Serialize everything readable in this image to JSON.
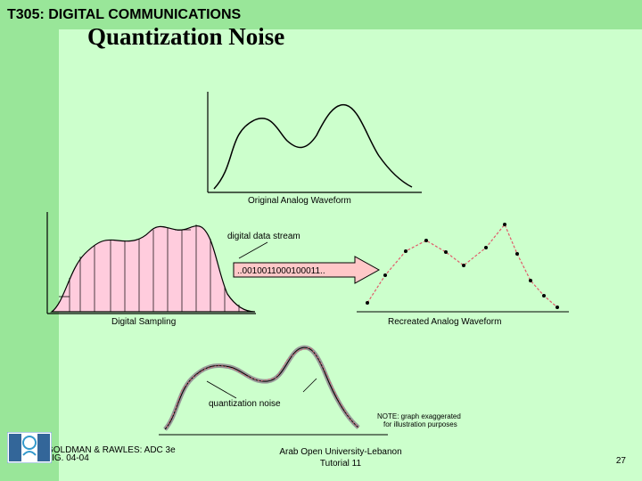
{
  "header": {
    "course_title": "T305: DIGITAL COMMUNICATIONS",
    "slide_title": "Quantization Noise"
  },
  "figure": {
    "original_caption": "Original Analog Waveform",
    "sampling_caption": "Digital Sampling",
    "stream_label": "digital data stream",
    "bitstream": "..0010011000100011..",
    "recreated_caption": "Recreated Analog Waveform",
    "noise_label": "quantization noise",
    "note_line1": "NOTE: graph exaggerated",
    "note_line2": "for illustration purposes",
    "credit_line1": "GOLDMAN & RAWLES: ADC 3e",
    "credit_line2": "FIG. 04-04"
  },
  "logo": {
    "left_letters": "B O U",
    "right_letters": "O U P"
  },
  "footer": {
    "university": "Arab Open University-Lebanon",
    "tutorial": "Tutorial 11",
    "page_number": "27"
  },
  "colors": {
    "background": "#ccffcc",
    "bars": "#99e699",
    "sampling_fill": "#ffccdd",
    "recreated_line": "#e05a6a",
    "arrow_fill": "#ffc8c8"
  }
}
